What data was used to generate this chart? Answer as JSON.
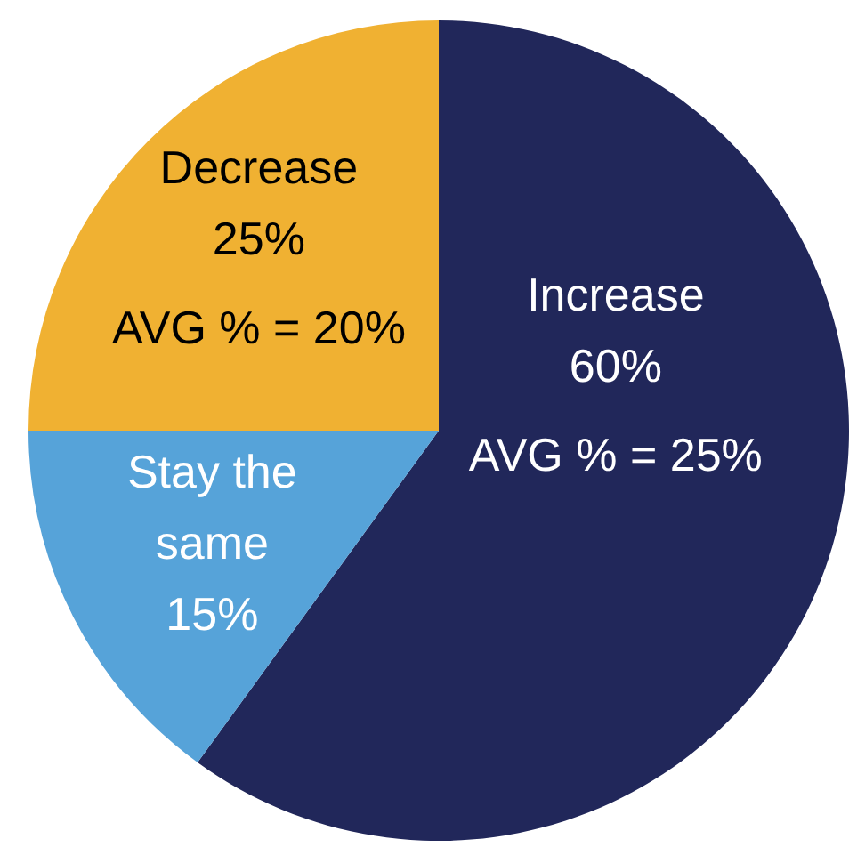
{
  "chart_data": {
    "type": "pie",
    "categories": [
      "Increase",
      "Stay the same",
      "Decrease"
    ],
    "values": [
      60,
      15,
      25
    ],
    "colors": [
      "#21275a",
      "#56a3d9",
      "#f0b132"
    ],
    "value_labels": [
      "60%",
      "15%",
      "25%"
    ],
    "annotations": [
      {
        "text": "AVG % = 25%",
        "x": "Increase"
      },
      {
        "text": "AVG % = 20%",
        "x": "Decrease"
      }
    ]
  }
}
